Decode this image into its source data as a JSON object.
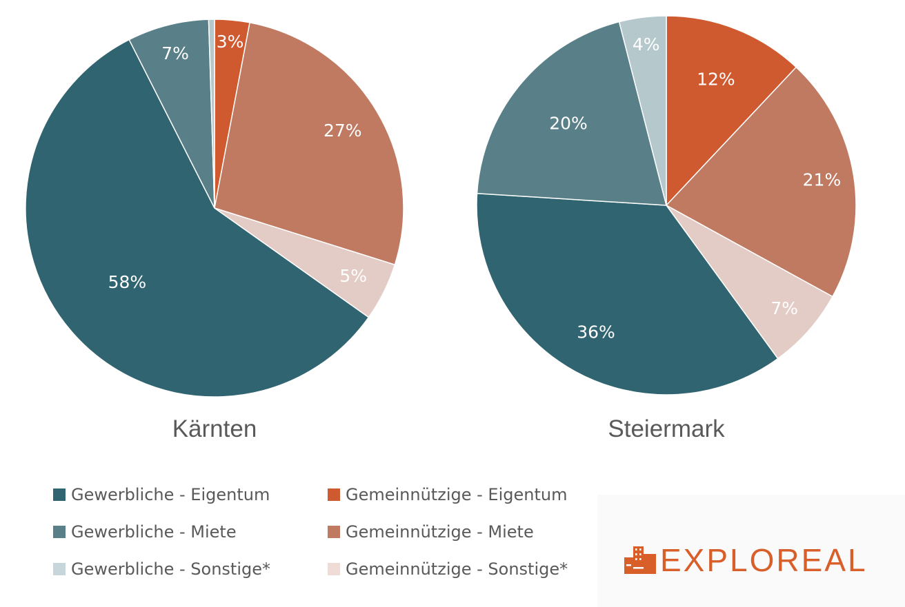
{
  "chart_data": [
    {
      "type": "pie",
      "title": "Kärnten",
      "slices": [
        {
          "key": "gem_eig",
          "value": 3,
          "label": "3%",
          "color": "#d05a30"
        },
        {
          "key": "gem_miete",
          "value": 27,
          "label": "27%",
          "color": "#c07a62"
        },
        {
          "key": "gem_sonst",
          "value": 5,
          "label": "5%",
          "color": "#e3ccc6"
        },
        {
          "key": "gew_eig",
          "value": 58,
          "label": "58%",
          "color": "#2f6470"
        },
        {
          "key": "gew_miete",
          "value": 7,
          "label": "7%",
          "color": "#598088"
        },
        {
          "key": "gew_sonst",
          "value": 0.5,
          "label": "",
          "color": "#b5c8cc"
        }
      ]
    },
    {
      "type": "pie",
      "title": "Steiermark",
      "slices": [
        {
          "key": "gem_eig",
          "value": 12,
          "label": "12%",
          "color": "#d05a30"
        },
        {
          "key": "gem_miete",
          "value": 21,
          "label": "21%",
          "color": "#c07a62"
        },
        {
          "key": "gem_sonst",
          "value": 7,
          "label": "7%",
          "color": "#e3ccc6"
        },
        {
          "key": "gew_eig",
          "value": 36,
          "label": "36%",
          "color": "#2f6470"
        },
        {
          "key": "gew_miete",
          "value": 20,
          "label": "20%",
          "color": "#598088"
        },
        {
          "key": "gew_sonst",
          "value": 4,
          "label": "4%",
          "color": "#b5c8cc"
        }
      ]
    }
  ],
  "legend": [
    {
      "label": "Gewerbliche - Eigentum",
      "color": "#2f6470"
    },
    {
      "label": "Gemeinnützige - Eigentum",
      "color": "#d05a30"
    },
    {
      "label": "Gewerbliche - Miete",
      "color": "#598088"
    },
    {
      "label": "Gemeinnützige - Miete",
      "color": "#c07a62"
    },
    {
      "label": "Gewerbliche - Sonstige*",
      "color": "#c6d6da"
    },
    {
      "label": "Gemeinnützige - Sonstige*",
      "color": "#f0dcd6"
    }
  ],
  "logo": {
    "prefix": "EXPLO",
    "suffix": "REAL",
    "color": "#d85f2a"
  }
}
